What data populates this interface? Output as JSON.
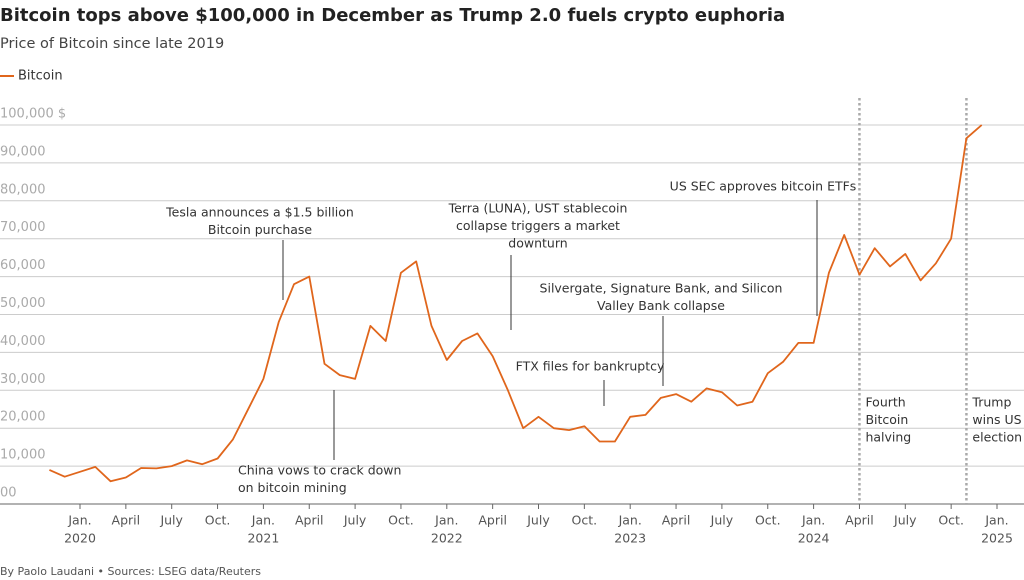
{
  "chart_data": {
    "type": "line",
    "title": "Bitcoin tops above $100,000 in December as Trump 2.0 fuels crypto euphoria",
    "subtitle": "Price of Bitcoin since late 2019",
    "source": "By Paolo Laudani • Sources: LSEG data/Reuters",
    "x": [
      "2019-11",
      "2019-12",
      "2020-01",
      "2020-02",
      "2020-03",
      "2020-04",
      "2020-05",
      "2020-06",
      "2020-07",
      "2020-08",
      "2020-09",
      "2020-10",
      "2020-11",
      "2020-12",
      "2021-01",
      "2021-02",
      "2021-03",
      "2021-04",
      "2021-05",
      "2021-06",
      "2021-07",
      "2021-08",
      "2021-09",
      "2021-10",
      "2021-11",
      "2021-12",
      "2022-01",
      "2022-02",
      "2022-03",
      "2022-04",
      "2022-05",
      "2022-06",
      "2022-07",
      "2022-08",
      "2022-09",
      "2022-10",
      "2022-11",
      "2022-12",
      "2023-01",
      "2023-02",
      "2023-03",
      "2023-04",
      "2023-05",
      "2023-06",
      "2023-07",
      "2023-08",
      "2023-09",
      "2023-10",
      "2023-11",
      "2023-12",
      "2024-01",
      "2024-02",
      "2024-03",
      "2024-04",
      "2024-05",
      "2024-06",
      "2024-07",
      "2024-08",
      "2024-09",
      "2024-10",
      "2024-11",
      "2024-12"
    ],
    "series": [
      {
        "name": "Bitcoin",
        "color": "#e0661c",
        "values": [
          9000,
          7200,
          8500,
          9800,
          6000,
          7000,
          9500,
          9400,
          10000,
          11500,
          10500,
          12000,
          17000,
          25000,
          33000,
          48000,
          58000,
          60000,
          37000,
          34000,
          33000,
          47000,
          43000,
          61000,
          64000,
          47000,
          38000,
          43000,
          45000,
          39000,
          30000,
          20000,
          23000,
          20000,
          19500,
          20500,
          16500,
          16500,
          23000,
          23500,
          28000,
          29000,
          27000,
          30500,
          29500,
          26000,
          27000,
          34500,
          37500,
          42500,
          42500,
          61000,
          71000,
          60500,
          67500,
          62700,
          66000,
          59000,
          63500,
          70000,
          96500,
          100000
        ]
      }
    ],
    "ylim": [
      0,
      100000
    ],
    "yticks": [
      {
        "value": 0,
        "label": "00"
      },
      {
        "value": 10000,
        "label": "10,000"
      },
      {
        "value": 20000,
        "label": "20,000"
      },
      {
        "value": 30000,
        "label": "30,000"
      },
      {
        "value": 40000,
        "label": "40,000"
      },
      {
        "value": 50000,
        "label": "50,000"
      },
      {
        "value": 60000,
        "label": "60,000"
      },
      {
        "value": 70000,
        "label": "70,000"
      },
      {
        "value": 80000,
        "label": "80,000"
      },
      {
        "value": 90000,
        "label": "90,000"
      },
      {
        "value": 100000,
        "label": "100,000 $"
      }
    ],
    "xticks": [
      {
        "value": "2020-01",
        "label": "Jan.",
        "year": "2020"
      },
      {
        "value": "2020-04",
        "label": "April"
      },
      {
        "value": "2020-07",
        "label": "July"
      },
      {
        "value": "2020-10",
        "label": "Oct."
      },
      {
        "value": "2021-01",
        "label": "Jan.",
        "year": "2021"
      },
      {
        "value": "2021-04",
        "label": "April"
      },
      {
        "value": "2021-07",
        "label": "July"
      },
      {
        "value": "2021-10",
        "label": "Oct."
      },
      {
        "value": "2022-01",
        "label": "Jan.",
        "year": "2022"
      },
      {
        "value": "2022-04",
        "label": "April"
      },
      {
        "value": "2022-07",
        "label": "July"
      },
      {
        "value": "2022-10",
        "label": "Oct."
      },
      {
        "value": "2023-01",
        "label": "Jan.",
        "year": "2023"
      },
      {
        "value": "2023-04",
        "label": "April"
      },
      {
        "value": "2023-07",
        "label": "July"
      },
      {
        "value": "2023-10",
        "label": "Oct."
      },
      {
        "value": "2024-01",
        "label": "Jan.",
        "year": "2024"
      },
      {
        "value": "2024-04",
        "label": "April"
      },
      {
        "value": "2024-07",
        "label": "July"
      },
      {
        "value": "2024-10",
        "label": "Oct."
      },
      {
        "value": "2025-01",
        "label": "Jan.",
        "year": "2025"
      }
    ],
    "grid": true,
    "legend": "top-left",
    "annotations": [
      {
        "lines": [
          "Tesla announces a $1.5 billion",
          "Bitcoin purchase"
        ]
      },
      {
        "lines": [
          "China vows to crack down",
          "on bitcoin mining"
        ]
      },
      {
        "lines": [
          "Terra (LUNA), UST stablecoin",
          "collapse triggers a market",
          "downturn"
        ]
      },
      {
        "lines": [
          "FTX files for bankruptcy"
        ]
      },
      {
        "lines": [
          "Silvergate, Signature Bank, and Silicon",
          "Valley Bank collapse"
        ]
      },
      {
        "lines": [
          "US SEC approves bitcoin ETFs"
        ]
      }
    ],
    "events": [
      {
        "x": "2024-04",
        "lines": [
          "Fourth",
          "Bitcoin",
          "halving"
        ]
      },
      {
        "x": "2024-11",
        "lines": [
          "Trump",
          "wins US",
          "election"
        ]
      }
    ]
  }
}
